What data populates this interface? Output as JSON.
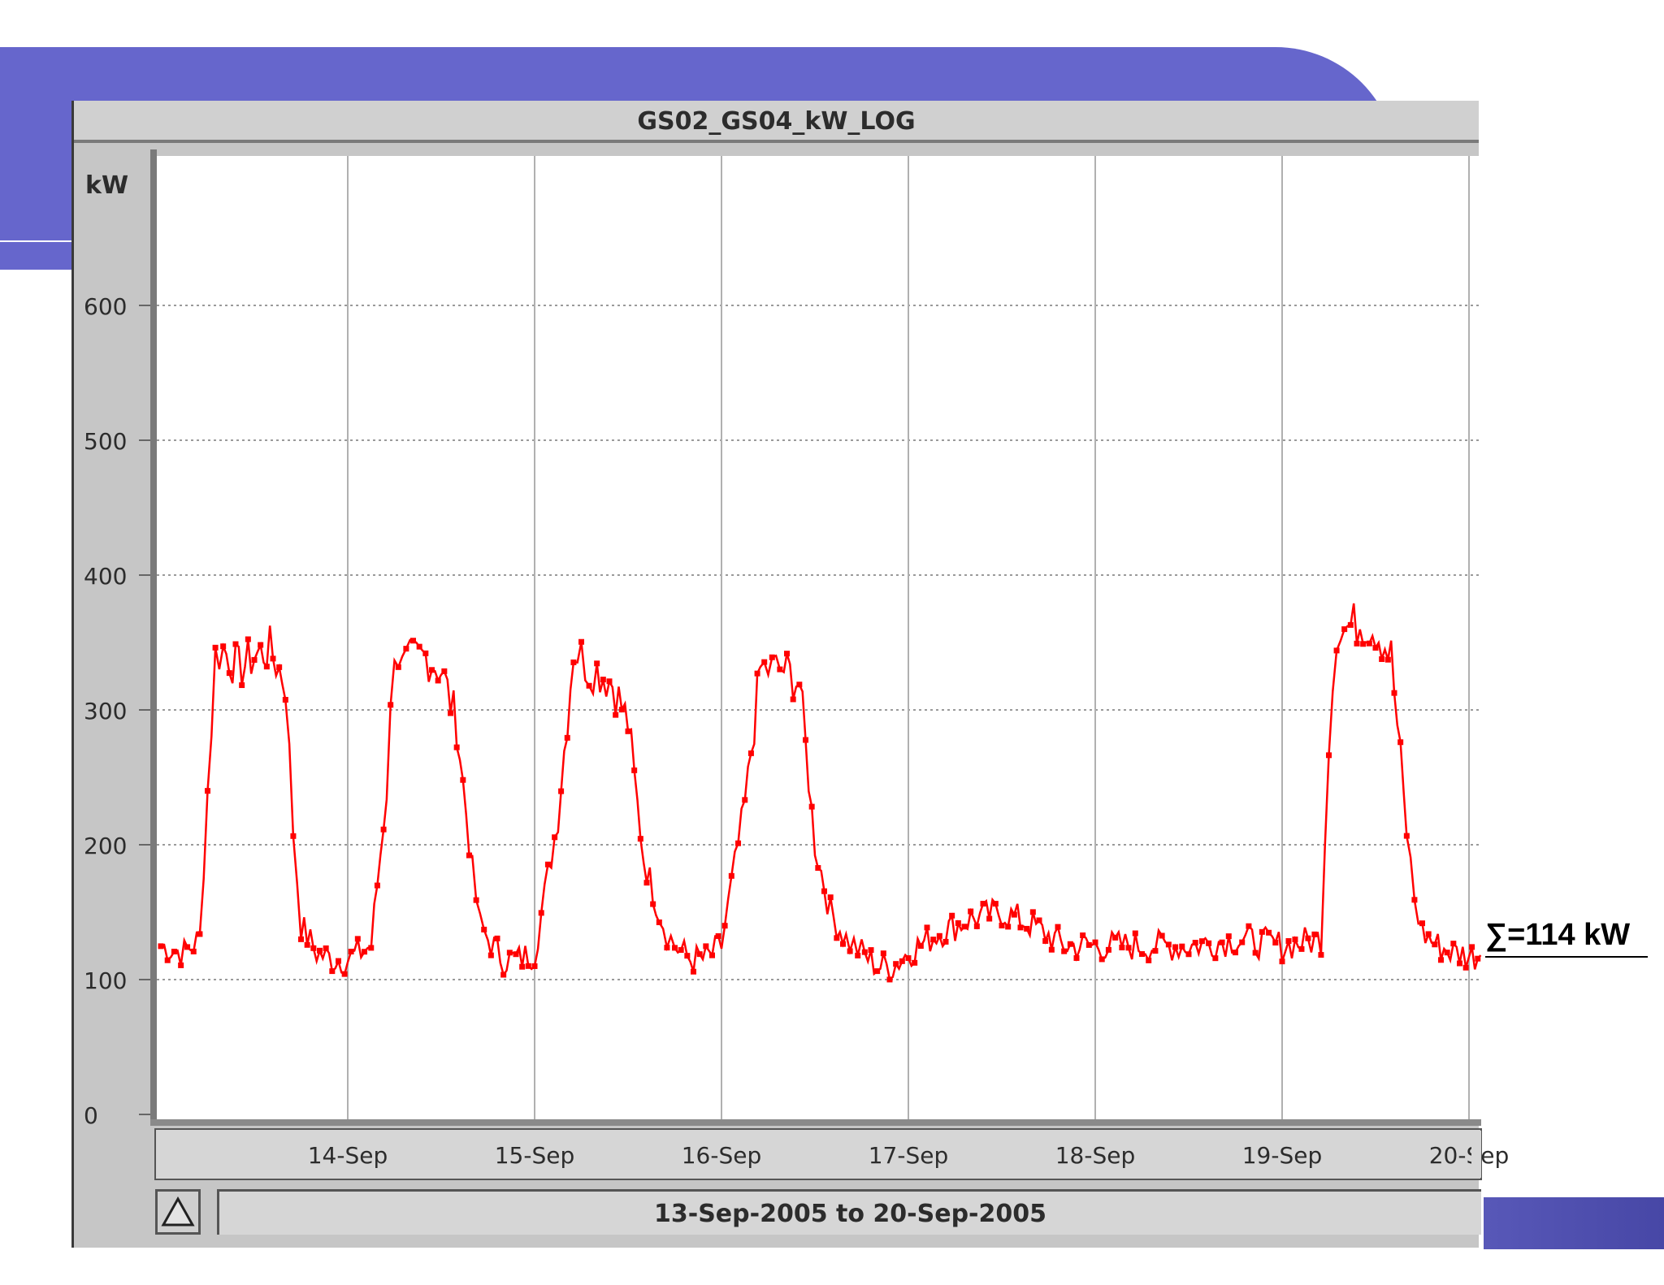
{
  "colors": {
    "slide_accent": "#6666cc",
    "series": "#ff0000",
    "plot_background": "#ffffff",
    "frame": "#c6c6c6"
  },
  "annotation": {
    "text": "∑=114 kW"
  },
  "range_button": {
    "icon": "triangle-up-icon"
  },
  "chart_data": {
    "type": "line",
    "title": "GS02_GS04_kW_LOG",
    "ylabel": "kW",
    "xlabel": "",
    "range_label": "13-Sep-2005 to 20-Sep-2005",
    "ylim": [
      0,
      700
    ],
    "yticks": [
      0,
      100,
      200,
      300,
      400,
      500,
      600
    ],
    "ytick_labels": [
      "0",
      "100",
      "200",
      "300",
      "400",
      "500",
      "600"
    ],
    "xlim": [
      "2005-09-13 00:00",
      "2005-09-20 01:30"
    ],
    "xticks": [
      "2005-09-14",
      "2005-09-15",
      "2005-09-16",
      "2005-09-17",
      "2005-09-18",
      "2005-09-19",
      "2005-09-20"
    ],
    "xtick_labels": [
      "14-Sep",
      "15-Sep",
      "16-Sep",
      "17-Sep",
      "18-Sep",
      "19-Sep",
      "20-Sep"
    ],
    "grid": true,
    "series": [
      {
        "color": "#ff0000",
        "x": [
          "2005-09-13 00:00",
          "2005-09-13 03:00",
          "2005-09-13 05:00",
          "2005-09-13 06:00",
          "2005-09-13 07:00",
          "2005-09-13 08:00",
          "2005-09-13 10:00",
          "2005-09-13 12:00",
          "2005-09-13 14:00",
          "2005-09-13 16:00",
          "2005-09-13 17:00",
          "2005-09-13 18:00",
          "2005-09-13 20:00",
          "2005-09-13 22:00",
          "2005-09-14 00:00",
          "2005-09-14 03:00",
          "2005-09-14 05:00",
          "2005-09-14 06:00",
          "2005-09-14 07:00",
          "2005-09-14 08:00",
          "2005-09-14 10:00",
          "2005-09-14 12:00",
          "2005-09-14 14:00",
          "2005-09-14 16:00",
          "2005-09-14 17:00",
          "2005-09-14 18:00",
          "2005-09-14 20:00",
          "2005-09-14 22:00",
          "2005-09-15 00:00",
          "2005-09-15 03:00",
          "2005-09-15 05:00",
          "2005-09-15 06:00",
          "2005-09-15 07:00",
          "2005-09-15 08:00",
          "2005-09-15 10:00",
          "2005-09-15 12:00",
          "2005-09-15 14:00",
          "2005-09-15 16:00",
          "2005-09-15 17:00",
          "2005-09-15 18:00",
          "2005-09-15 20:00",
          "2005-09-15 22:00",
          "2005-09-16 00:00",
          "2005-09-16 03:00",
          "2005-09-16 05:00",
          "2005-09-16 06:00",
          "2005-09-16 07:00",
          "2005-09-16 08:00",
          "2005-09-16 10:00",
          "2005-09-16 12:00",
          "2005-09-16 14:00",
          "2005-09-16 16:00",
          "2005-09-16 17:00",
          "2005-09-16 18:00",
          "2005-09-16 20:00",
          "2005-09-16 22:00",
          "2005-09-17 00:00",
          "2005-09-17 04:00",
          "2005-09-17 08:00",
          "2005-09-17 12:00",
          "2005-09-17 16:00",
          "2005-09-17 20:00",
          "2005-09-18 00:00",
          "2005-09-18 06:00",
          "2005-09-18 12:00",
          "2005-09-18 18:00",
          "2005-09-19 00:00",
          "2005-09-19 05:00",
          "2005-09-19 06:00",
          "2005-09-19 07:00",
          "2005-09-19 08:00",
          "2005-09-19 10:00",
          "2005-09-19 12:00",
          "2005-09-19 14:00",
          "2005-09-19 16:00",
          "2005-09-19 17:00",
          "2005-09-19 18:00",
          "2005-09-19 20:00",
          "2005-09-19 22:00",
          "2005-09-20 00:00",
          "2005-09-20 01:30"
        ],
        "y": [
          125,
          120,
          130,
          240,
          340,
          345,
          330,
          340,
          345,
          320,
          210,
          140,
          120,
          115,
          115,
          125,
          240,
          350,
          330,
          335,
          340,
          330,
          290,
          180,
          140,
          130,
          115,
          115,
          120,
          220,
          345,
          340,
          330,
          330,
          320,
          290,
          190,
          150,
          135,
          125,
          115,
          115,
          125,
          230,
          330,
          330,
          330,
          330,
          320,
          200,
          150,
          130,
          125,
          120,
          110,
          110,
          120,
          135,
          145,
          150,
          140,
          125,
          125,
          125,
          125,
          130,
          125,
          130,
          280,
          360,
          360,
          365,
          360,
          340,
          210,
          160,
          135,
          125,
          120,
          118,
          118
        ]
      }
    ]
  }
}
